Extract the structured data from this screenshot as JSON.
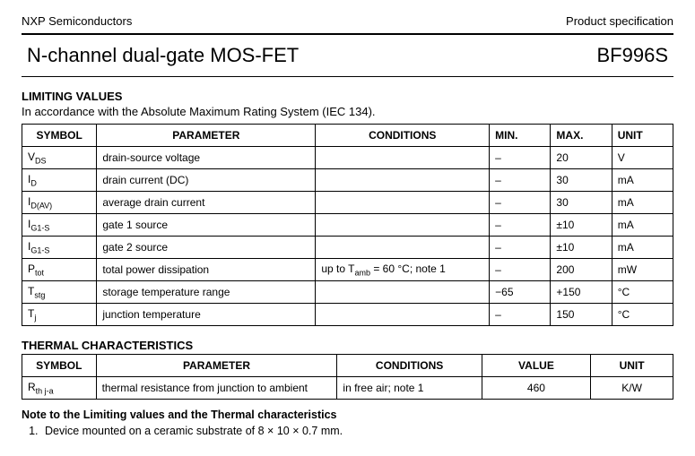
{
  "header": {
    "left": "NXP Semiconductors",
    "right": "Product specification"
  },
  "title": {
    "main": "N-channel dual-gate MOS-FET",
    "part": "BF996S"
  },
  "limiting": {
    "title": "LIMITING VALUES",
    "subtitle": "In accordance with the Absolute Maximum Rating System (IEC 134).",
    "columns": [
      "SYMBOL",
      "PARAMETER",
      "CONDITIONS",
      "MIN.",
      "MAX.",
      "UNIT"
    ],
    "rows": [
      {
        "sym": "V",
        "sub": "DS",
        "param": "drain-source voltage",
        "cond": "",
        "min": "–",
        "max": "20",
        "unit": "V"
      },
      {
        "sym": "I",
        "sub": "D",
        "param": "drain current (DC)",
        "cond": "",
        "min": "–",
        "max": "30",
        "unit": "mA"
      },
      {
        "sym": "I",
        "sub": "D(AV)",
        "param": "average drain current",
        "cond": "",
        "min": "–",
        "max": "30",
        "unit": "mA"
      },
      {
        "sym": "I",
        "sub": "G1-S",
        "param": "gate 1 source",
        "cond": "",
        "min": "–",
        "max": "±10",
        "unit": "mA"
      },
      {
        "sym": "I",
        "sub": "G1-S",
        "param": "gate 2 source",
        "cond": "",
        "min": "–",
        "max": "±10",
        "unit": "mA"
      },
      {
        "sym": "P",
        "sub": "tot",
        "param": "total power dissipation",
        "cond": "up to T_amb = 60 °C; note 1",
        "min": "–",
        "max": "200",
        "unit": "mW"
      },
      {
        "sym": "T",
        "sub": "stg",
        "param": "storage temperature range",
        "cond": "",
        "min": "−65",
        "max": "+150",
        "unit": "°C"
      },
      {
        "sym": "T",
        "sub": "j",
        "param": "junction temperature",
        "cond": "",
        "min": "–",
        "max": "150",
        "unit": "°C"
      }
    ]
  },
  "thermal": {
    "title": "THERMAL CHARACTERISTICS",
    "columns": [
      "SYMBOL",
      "PARAMETER",
      "CONDITIONS",
      "VALUE",
      "UNIT"
    ],
    "rows": [
      {
        "sym": "R",
        "sub": "th j-a",
        "param": "thermal resistance from junction to ambient",
        "cond": "in free air; note 1",
        "val": "460",
        "unit": "K/W"
      }
    ]
  },
  "note": {
    "title": "Note to the Limiting values and the Thermal characteristics",
    "items": [
      "Device mounted on a ceramic substrate of 8 × 10 × 0.7 mm."
    ]
  }
}
